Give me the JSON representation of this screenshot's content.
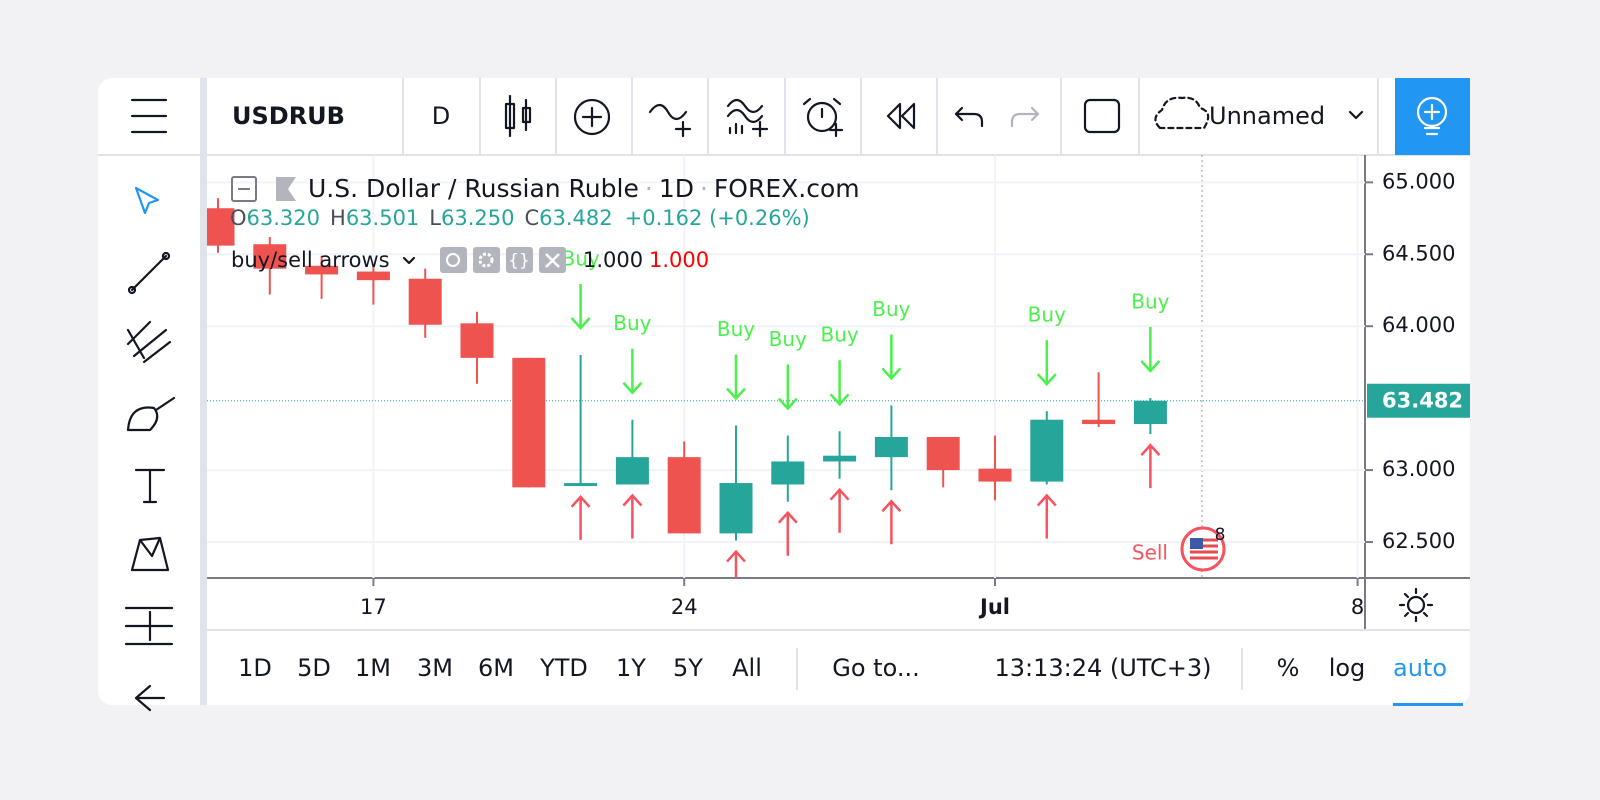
{
  "toolbar": {
    "symbol": "USDRUB",
    "interval": "D",
    "layout_name": "Unnamed"
  },
  "legend": {
    "name": "U.S. Dollar / Russian Ruble",
    "interval": "1D",
    "exchange": "FOREX.com",
    "ohlc": [
      {
        "key": "O",
        "value": "63.320"
      },
      {
        "key": "H",
        "value": "63.501"
      },
      {
        "key": "L",
        "value": "63.250"
      },
      {
        "key": "C",
        "value": "63.482"
      }
    ],
    "change": "+0.162 (+0.26%)",
    "indicator": {
      "name": "buy/sell arrows",
      "inputs": [
        "1.000",
        "1.000"
      ]
    }
  },
  "chart_data": {
    "type": "candlestick",
    "categories": [
      null,
      null,
      null,
      "17",
      null,
      null,
      null,
      null,
      null,
      "24",
      null,
      null,
      null,
      null,
      null,
      "Jul",
      null,
      null,
      null,
      null,
      null,
      null,
      "8"
    ],
    "open": [
      64.82,
      64.57,
      64.42,
      64.38,
      64.33,
      64.02,
      63.78,
      62.89,
      62.9,
      63.09,
      62.56,
      62.9,
      63.06,
      63.09,
      63.23,
      63.01,
      62.92,
      63.35,
      63.32,
      null,
      null,
      null,
      null
    ],
    "high": [
      64.89,
      64.62,
      64.49,
      64.43,
      64.4,
      64.1,
      63.78,
      63.8,
      63.35,
      63.2,
      63.31,
      63.24,
      63.27,
      63.45,
      63.23,
      63.24,
      63.41,
      63.68,
      63.501,
      null,
      null,
      null,
      null
    ],
    "low": [
      64.51,
      64.22,
      64.19,
      64.15,
      63.92,
      63.6,
      62.88,
      62.89,
      62.9,
      62.56,
      62.51,
      62.78,
      62.94,
      62.86,
      62.88,
      62.79,
      62.9,
      63.3,
      63.25,
      null,
      null,
      null,
      null
    ],
    "close": [
      64.56,
      64.4,
      64.36,
      64.32,
      64.01,
      63.78,
      62.88,
      62.91,
      63.09,
      62.56,
      62.91,
      63.06,
      63.1,
      63.23,
      63.0,
      62.92,
      63.35,
      63.32,
      63.482,
      null,
      null,
      null,
      null
    ],
    "up_color": "#26a69a",
    "down_color": "#ef5350",
    "ylim": [
      62.25,
      65.19
    ],
    "yticks": [
      {
        "value": 62.5,
        "label": "62.500"
      },
      {
        "value": 63,
        "label": "63.000"
      },
      {
        "value": 64,
        "label": "64.000"
      },
      {
        "value": 64.5,
        "label": "64.500"
      },
      {
        "value": 65,
        "label": "65.000"
      }
    ],
    "grid": true,
    "last_price": {
      "value": 63.482,
      "label": "63.482"
    },
    "signals": [
      false,
      false,
      false,
      false,
      false,
      false,
      false,
      true,
      true,
      false,
      true,
      true,
      true,
      true,
      false,
      false,
      true,
      false,
      true,
      false,
      false,
      false,
      false
    ],
    "buy_label": "Buy",
    "buy_color": "#4cf04c",
    "sell_color": "#f7525f",
    "sell_label": "Sell",
    "events_badge": "8"
  },
  "bottom_bar": {
    "ranges": [
      "1D",
      "5D",
      "1M",
      "3M",
      "6M",
      "YTD",
      "1Y",
      "5Y",
      "All"
    ],
    "goto": "Go to...",
    "clock": "13:13:24 (UTC+3)",
    "options": [
      "%",
      "log",
      "auto"
    ]
  }
}
